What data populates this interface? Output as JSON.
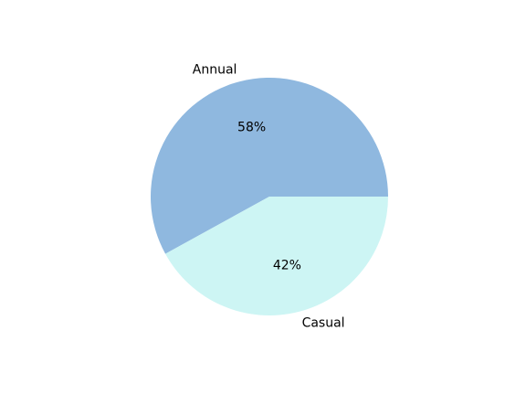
{
  "chart_data": {
    "type": "pie",
    "categories": [
      "Annual",
      "Casual"
    ],
    "values": [
      58,
      42
    ],
    "value_labels": [
      "58%",
      "42%"
    ],
    "colors": [
      "#8fb8df",
      "#cdf5f4"
    ],
    "start_angle": 0,
    "direction": "counterclockwise",
    "title": "",
    "legend": "none"
  }
}
